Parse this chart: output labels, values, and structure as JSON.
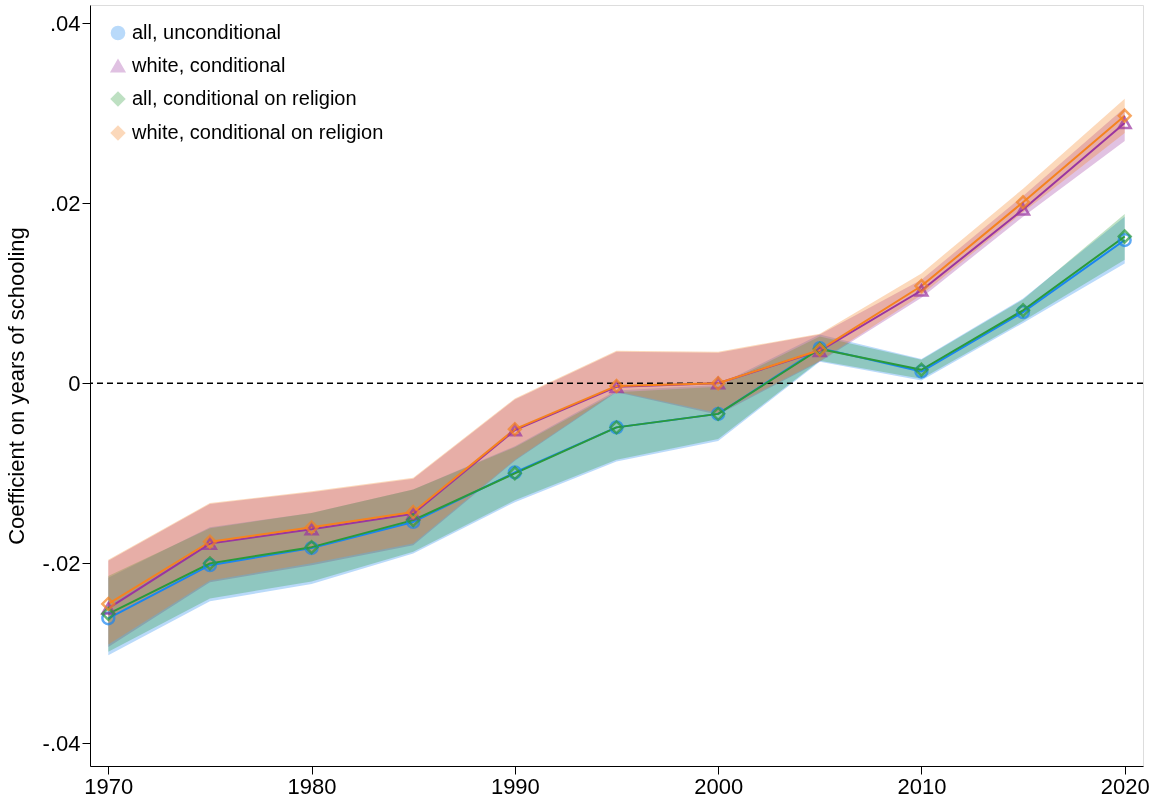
{
  "chart_data": {
    "type": "line",
    "ylabel": "Coefficient on years of schooling",
    "x": [
      1970,
      1975,
      1980,
      1985,
      1990,
      1995,
      2000,
      2005,
      2010,
      2015,
      2020
    ],
    "xlim": [
      1969.1,
      2020.9
    ],
    "xticks": [
      1970,
      1980,
      1990,
      2000,
      2010,
      2020
    ],
    "ylim": [
      -0.0425,
      0.042
    ],
    "yticks": [
      {
        "value": -0.04,
        "label": "-.04"
      },
      {
        "value": -0.02,
        "label": "-.02"
      },
      {
        "value": 0,
        "label": "0"
      },
      {
        "value": 0.02,
        "label": ".02"
      },
      {
        "value": 0.04,
        "label": ".04"
      }
    ],
    "grid": false,
    "legend": "top left",
    "line_style": "solid",
    "ref_lines": [
      {
        "axis": "y",
        "value": 0,
        "color": "#000000",
        "line_style": "dashed"
      }
    ],
    "series": [
      {
        "name": "all, unconditional",
        "color": "#1a86f0",
        "marker": "circle",
        "values": [
          -0.0261,
          -0.0202,
          -0.0183,
          -0.0154,
          -0.0099,
          -0.0049,
          -0.0034,
          0.0039,
          0.0013,
          0.0079,
          0.0159
        ],
        "lower": [
          -0.0302,
          -0.0242,
          -0.0223,
          -0.0189,
          -0.0132,
          -0.0087,
          -0.0064,
          0.0024,
          0.0003,
          0.0067,
          0.0133
        ],
        "upper": [
          -0.0216,
          -0.016,
          -0.0144,
          -0.0118,
          -0.007,
          -0.0008,
          -0.0002,
          0.0054,
          0.0027,
          0.0094,
          0.0185
        ]
      },
      {
        "name": "white, conditional",
        "color": "#9a35a0",
        "marker": "triangle",
        "values": [
          -0.025,
          -0.0178,
          -0.0162,
          -0.0145,
          -0.0052,
          -0.0004,
          0.0,
          0.0036,
          0.0103,
          0.0193,
          0.0289
        ],
        "lower": [
          -0.0293,
          -0.0221,
          -0.0202,
          -0.018,
          -0.0086,
          -0.001,
          -0.0035,
          0.0024,
          0.0095,
          0.0185,
          0.0269
        ],
        "upper": [
          -0.0197,
          -0.0134,
          -0.0121,
          -0.0106,
          -0.0018,
          0.0035,
          0.0034,
          0.0054,
          0.0115,
          0.0208,
          0.0306
        ]
      },
      {
        "name": "all, conditional on religion",
        "color": "#2a9a3a",
        "marker": "diamond",
        "values": [
          -0.0256,
          -0.02,
          -0.0182,
          -0.0152,
          -0.01,
          -0.0049,
          -0.0034,
          0.0038,
          0.0015,
          0.0081,
          0.0163
        ],
        "lower": [
          -0.0298,
          -0.0239,
          -0.022,
          -0.0187,
          -0.013,
          -0.0085,
          -0.0062,
          0.0025,
          0.0005,
          0.0069,
          0.0137
        ],
        "upper": [
          -0.0214,
          -0.0161,
          -0.0144,
          -0.0118,
          -0.0071,
          -0.001,
          -0.0004,
          0.0052,
          0.0026,
          0.0093,
          0.0188
        ]
      },
      {
        "name": "white, conditional on religion",
        "color": "#f5821f",
        "marker": "diamond",
        "values": [
          -0.0245,
          -0.0176,
          -0.016,
          -0.0143,
          -0.0051,
          -0.0003,
          0.0,
          0.0037,
          0.0108,
          0.0201,
          0.0297
        ],
        "lower": [
          -0.029,
          -0.0219,
          -0.02,
          -0.0178,
          -0.0085,
          -0.0009,
          -0.0033,
          0.0025,
          0.0098,
          0.019,
          0.0278
        ],
        "upper": [
          -0.0196,
          -0.0133,
          -0.012,
          -0.0105,
          -0.0017,
          0.0036,
          0.0035,
          0.0055,
          0.0122,
          0.0216,
          0.0316
        ]
      }
    ]
  }
}
